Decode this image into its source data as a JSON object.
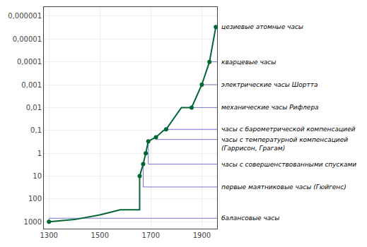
{
  "chart_data": {
    "type": "line",
    "x": [
      1300,
      1400,
      1500,
      1580,
      1637,
      1656,
      1656,
      1670,
      1680,
      1690,
      1720,
      1750,
      1760,
      1820,
      1860,
      1900,
      1930,
      1955
    ],
    "series": [
      {
        "type": "line",
        "color": "#006633",
        "marker": "none",
        "values": [
          1000,
          800,
          500,
          300,
          300,
          300,
          10,
          3,
          1,
          0.3,
          0.2,
          0.1,
          0.09,
          0.01,
          0.01,
          0.001,
          0.0001,
          3e-06
        ]
      },
      {
        "type": "scatter",
        "color": "#006633",
        "marker": "circle",
        "values": [
          1000,
          null,
          null,
          null,
          null,
          null,
          10,
          3,
          1,
          0.3,
          0.2,
          null,
          0.09,
          null,
          0.01,
          0.001,
          0.0001,
          3e-06
        ]
      }
    ],
    "log": "y",
    "grid": true,
    "xlim": [
      1280,
      1960
    ],
    "xticks": [
      1300,
      1500,
      1700,
      1900
    ],
    "ylim": [
      2000,
      4e-07
    ],
    "yticks": [
      {
        "value": 1e-06,
        "label": "0,000001"
      },
      {
        "value": 1e-05,
        "label": "0,00001"
      },
      {
        "value": 0.0001,
        "label": "0,0001"
      },
      {
        "value": 0.001,
        "label": "0,001"
      },
      {
        "value": 0.01,
        "label": "0,01"
      },
      {
        "value": 0.1,
        "label": "0,1"
      },
      1,
      10,
      100,
      1000
    ],
    "annotations": [
      {
        "text": "цезиевые атомные часы",
        "x": 1955,
        "y": 3e-06,
        "label_y": 3e-06,
        "color": "#7777cc"
      },
      {
        "text": "кварцевые часы",
        "x": 1930,
        "y": 0.0001,
        "label_y": 0.0001,
        "color": "#7777cc"
      },
      {
        "text": "электрические часы Шортта",
        "x": 1900,
        "y": 0.001,
        "label_y": 0.001,
        "color": "#7777cc"
      },
      {
        "text": "механические часы Рифлера",
        "x": 1860,
        "y": 0.01,
        "label_y": 0.01,
        "color": "#7777cc"
      },
      {
        "text": "часы с барометрической компенсацией",
        "x": 1760,
        "y": 0.09,
        "label_y": 0.09,
        "color": "#7777cc"
      },
      {
        "text": "часы с температурной компенсацией\n(Гаррисон, Грагам)",
        "x": 1720,
        "y": 0.2,
        "label_y": 0.25,
        "color": "#7777cc"
      },
      {
        "text": "часы с совершенствованными спусками",
        "x": 1690,
        "y": 0.3,
        "label_y": 3.0,
        "color": "#7777cc"
      },
      {
        "text": "первые маятниковые часы (Гюйгенс)",
        "x": 1670,
        "y": 3.0,
        "label_y": 30.0,
        "color": "#7777cc"
      },
      {
        "text": "балансовые часы",
        "x": 1300,
        "y": 1000.0,
        "label_y": 700.0,
        "color": "#7777cc"
      }
    ]
  }
}
